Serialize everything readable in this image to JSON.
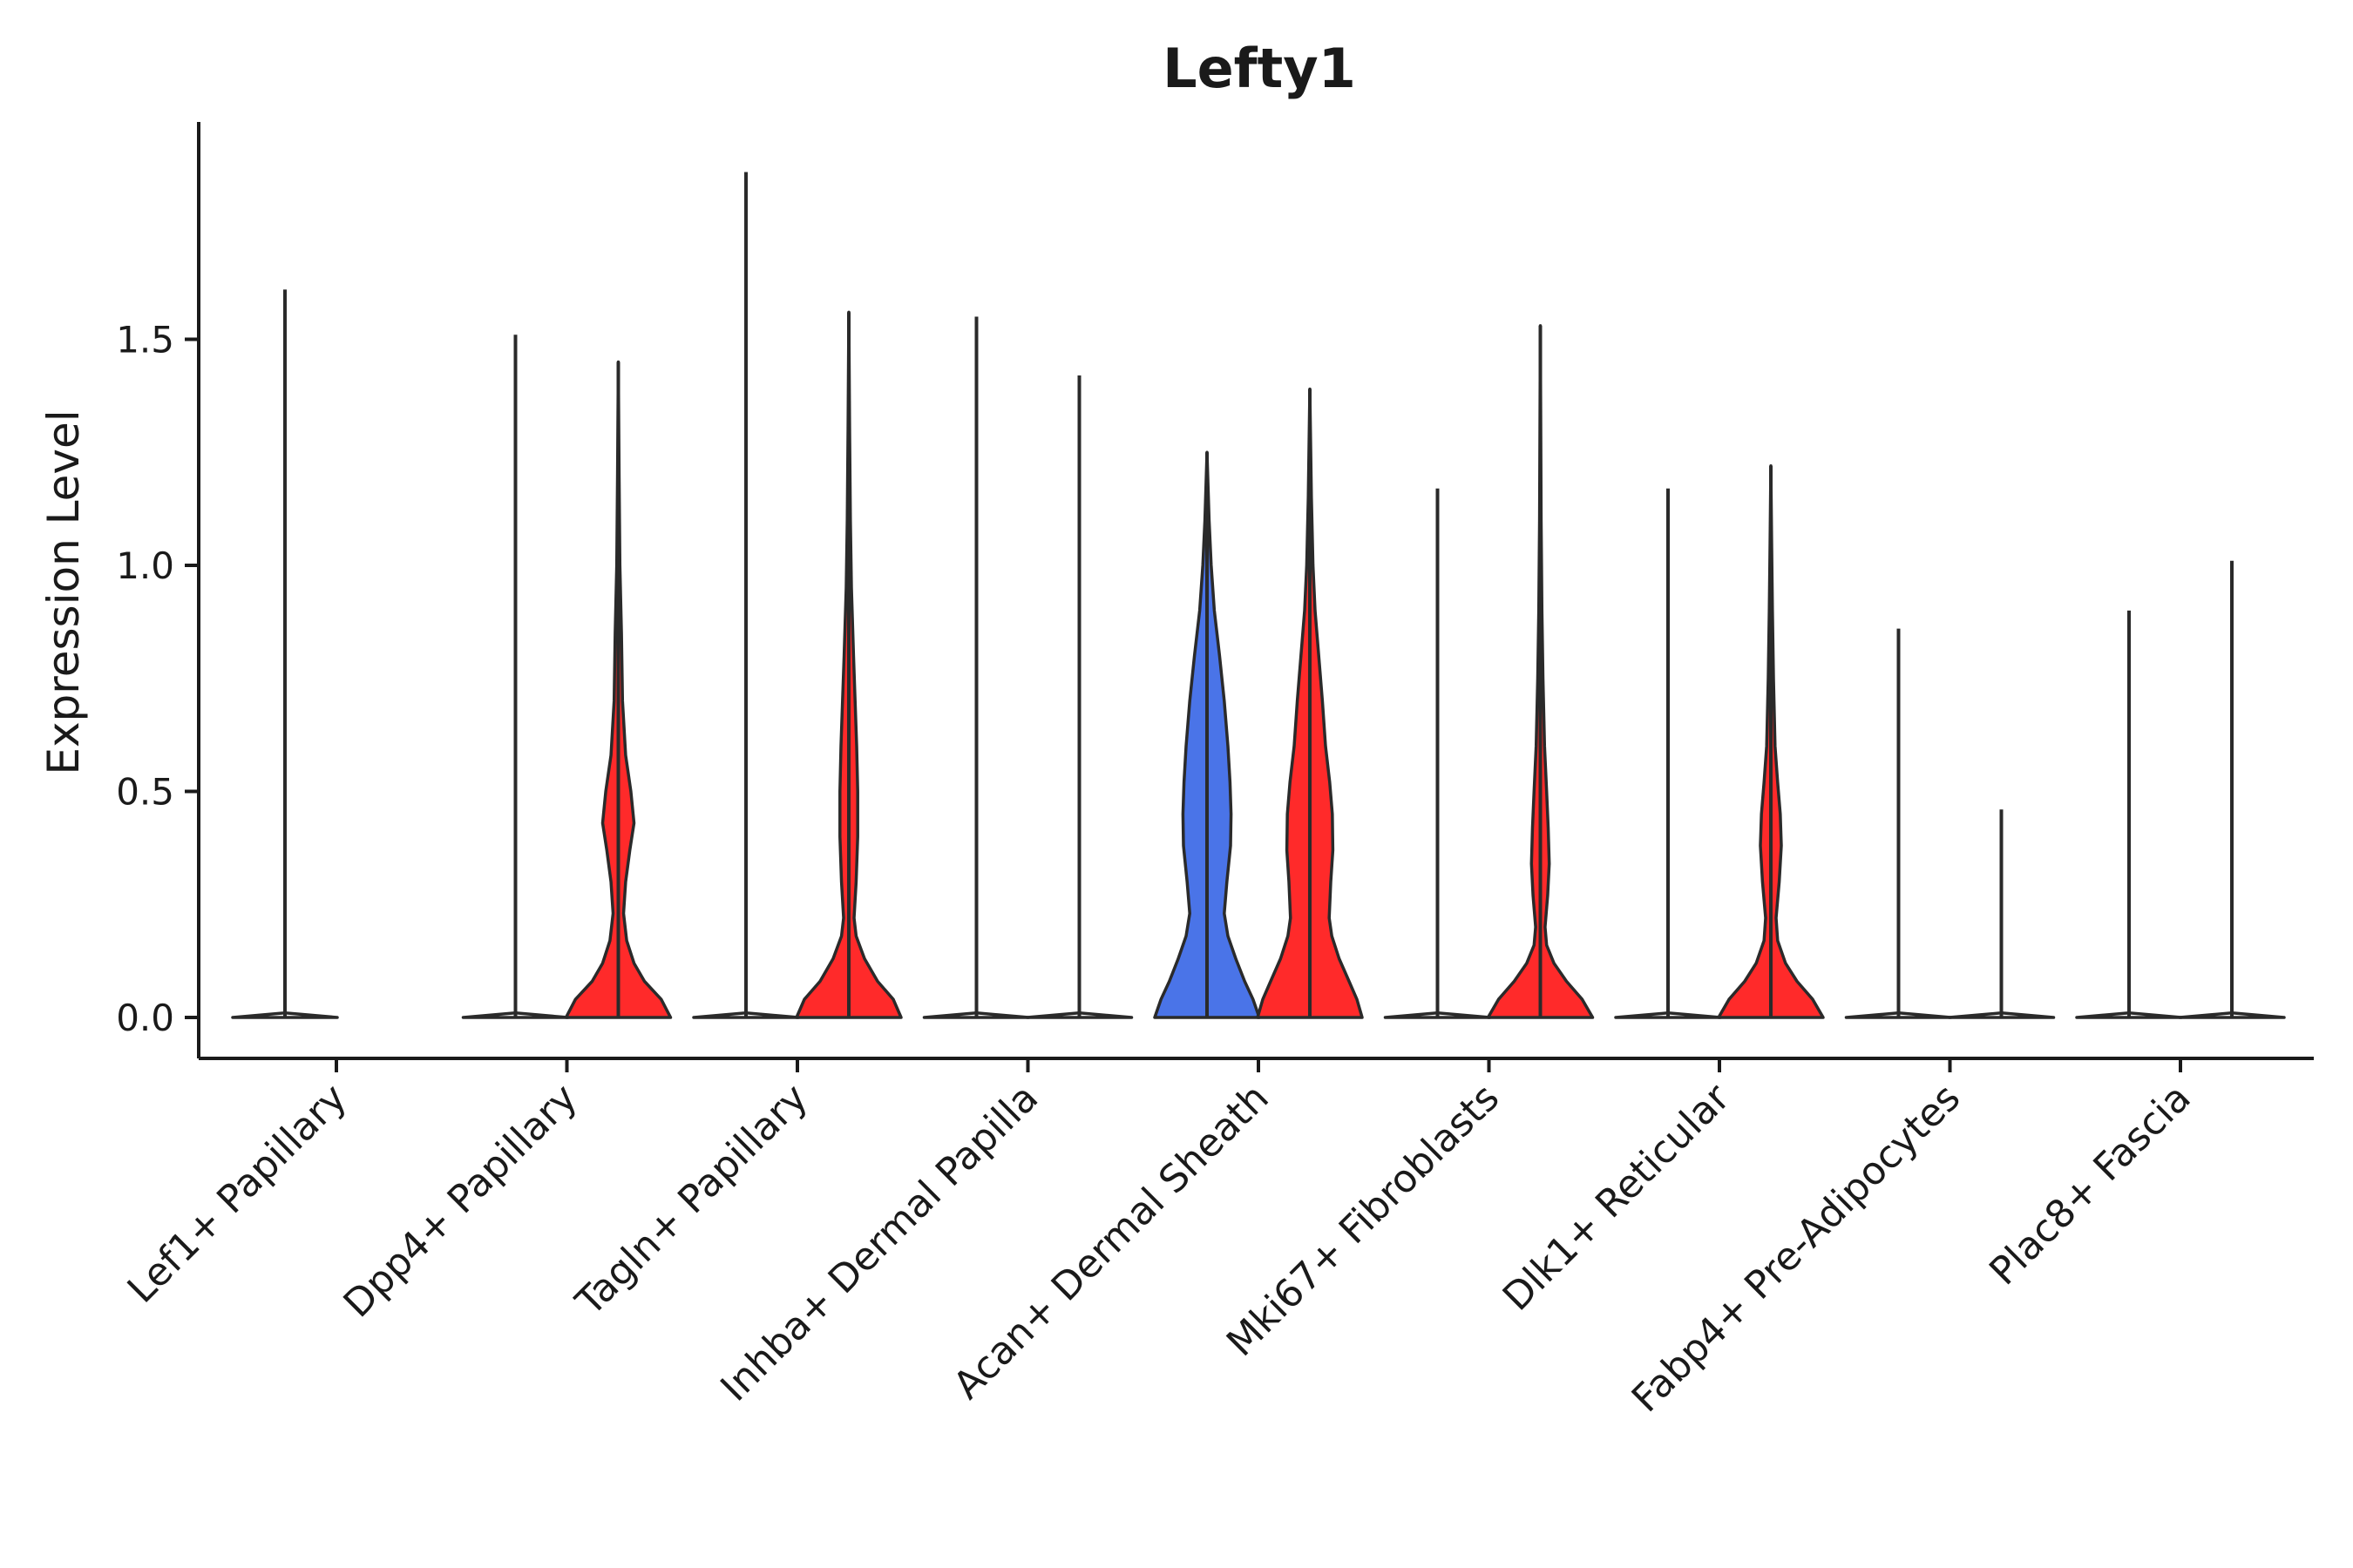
{
  "chart_data": {
    "type": "violin",
    "title": "Lefty1",
    "xlabel": "",
    "ylabel": "Expression Level",
    "ylim": [
      -0.1,
      1.9
    ],
    "yticks": [
      0.0,
      0.5,
      1.0,
      1.5
    ],
    "ytick_labels": [
      "0.0",
      "0.5",
      "1.0",
      "1.5"
    ],
    "grid": false,
    "legend": "none",
    "colors": {
      "group_a": "#ffffff",
      "group_b": "#ff2a2a",
      "highlight": "#4a74e8"
    },
    "categories": [
      "Lef1+ Papillary",
      "Dpp4+ Papillary",
      "Tagln+ Papillary",
      "Inhba+ Dermal Papilla",
      "Acan+ Dermal Sheath",
      "Mki67+ Fibroblasts",
      "Dlk1+ Reticular",
      "Fabp4+ Pre-Adipocytes",
      "Plac8+ Fascia"
    ],
    "violins": [
      {
        "category": "Lef1+ Papillary",
        "side": "left",
        "color": "#ffffff",
        "max": 1.61,
        "profile": [
          [
            0.0,
            1.0
          ],
          [
            0.01,
            0.0
          ]
        ]
      },
      {
        "category": "Dpp4+ Papillary",
        "side": "left",
        "color": "#ffffff",
        "max": 1.51,
        "profile": [
          [
            0.0,
            1.0
          ],
          [
            0.01,
            0.0
          ]
        ]
      },
      {
        "category": "Dpp4+ Papillary",
        "side": "right",
        "color": "#ff2a2a",
        "max": 1.45,
        "profile": [
          [
            0.0,
            1.0
          ],
          [
            0.04,
            0.82
          ],
          [
            0.08,
            0.5
          ],
          [
            0.12,
            0.3
          ],
          [
            0.17,
            0.16
          ],
          [
            0.23,
            0.1
          ],
          [
            0.3,
            0.14
          ],
          [
            0.37,
            0.22
          ],
          [
            0.43,
            0.3
          ],
          [
            0.5,
            0.24
          ],
          [
            0.58,
            0.14
          ],
          [
            0.7,
            0.08
          ],
          [
            0.85,
            0.06
          ],
          [
            1.0,
            0.03
          ],
          [
            1.2,
            0.015
          ],
          [
            1.45,
            0.0
          ]
        ]
      },
      {
        "category": "Tagln+ Papillary",
        "side": "left",
        "color": "#ffffff",
        "max": 1.87,
        "profile": [
          [
            0.0,
            1.0
          ],
          [
            0.01,
            0.0
          ]
        ]
      },
      {
        "category": "Tagln+ Papillary",
        "side": "right",
        "color": "#ff2a2a",
        "max": 1.56,
        "profile": [
          [
            0.0,
            1.0
          ],
          [
            0.04,
            0.85
          ],
          [
            0.08,
            0.55
          ],
          [
            0.13,
            0.3
          ],
          [
            0.18,
            0.14
          ],
          [
            0.22,
            0.1
          ],
          [
            0.3,
            0.14
          ],
          [
            0.4,
            0.17
          ],
          [
            0.5,
            0.17
          ],
          [
            0.6,
            0.15
          ],
          [
            0.7,
            0.12
          ],
          [
            0.8,
            0.09
          ],
          [
            0.95,
            0.05
          ],
          [
            1.1,
            0.03
          ],
          [
            1.3,
            0.015
          ],
          [
            1.56,
            0.0
          ]
        ]
      },
      {
        "category": "Inhba+ Dermal Papilla",
        "side": "left",
        "color": "#ffffff",
        "max": 1.55,
        "profile": [
          [
            0.0,
            1.0
          ],
          [
            0.01,
            0.0
          ]
        ]
      },
      {
        "category": "Inhba+ Dermal Papilla",
        "side": "right",
        "color": "#ffffff",
        "max": 1.42,
        "profile": [
          [
            0.0,
            1.0
          ],
          [
            0.01,
            0.0
          ]
        ]
      },
      {
        "category": "Acan+ Dermal Sheath",
        "side": "left",
        "color": "#4a74e8",
        "max": 1.25,
        "profile": [
          [
            0.0,
            1.0
          ],
          [
            0.04,
            0.88
          ],
          [
            0.08,
            0.72
          ],
          [
            0.13,
            0.55
          ],
          [
            0.18,
            0.4
          ],
          [
            0.23,
            0.33
          ],
          [
            0.3,
            0.38
          ],
          [
            0.38,
            0.45
          ],
          [
            0.45,
            0.46
          ],
          [
            0.52,
            0.44
          ],
          [
            0.6,
            0.4
          ],
          [
            0.7,
            0.33
          ],
          [
            0.8,
            0.24
          ],
          [
            0.9,
            0.14
          ],
          [
            1.0,
            0.08
          ],
          [
            1.1,
            0.04
          ],
          [
            1.25,
            0.0
          ]
        ]
      },
      {
        "category": "Acan+ Dermal Sheath",
        "side": "right",
        "color": "#ff2a2a",
        "max": 1.39,
        "profile": [
          [
            0.0,
            1.0
          ],
          [
            0.04,
            0.9
          ],
          [
            0.08,
            0.75
          ],
          [
            0.13,
            0.56
          ],
          [
            0.18,
            0.42
          ],
          [
            0.22,
            0.37
          ],
          [
            0.3,
            0.4
          ],
          [
            0.37,
            0.44
          ],
          [
            0.45,
            0.43
          ],
          [
            0.52,
            0.38
          ],
          [
            0.6,
            0.3
          ],
          [
            0.7,
            0.24
          ],
          [
            0.8,
            0.17
          ],
          [
            0.9,
            0.1
          ],
          [
            1.0,
            0.06
          ],
          [
            1.15,
            0.03
          ],
          [
            1.39,
            0.0
          ]
        ]
      },
      {
        "category": "Mki67+ Fibroblasts",
        "side": "left",
        "color": "#ffffff",
        "max": 1.17,
        "profile": [
          [
            0.0,
            1.0
          ],
          [
            0.01,
            0.0
          ]
        ]
      },
      {
        "category": "Mki67+ Fibroblasts",
        "side": "right",
        "color": "#ff2a2a",
        "max": 1.53,
        "profile": [
          [
            0.0,
            1.0
          ],
          [
            0.04,
            0.8
          ],
          [
            0.08,
            0.5
          ],
          [
            0.12,
            0.26
          ],
          [
            0.16,
            0.12
          ],
          [
            0.2,
            0.09
          ],
          [
            0.27,
            0.14
          ],
          [
            0.34,
            0.17
          ],
          [
            0.42,
            0.15
          ],
          [
            0.5,
            0.12
          ],
          [
            0.6,
            0.08
          ],
          [
            0.75,
            0.05
          ],
          [
            0.9,
            0.03
          ],
          [
            1.1,
            0.015
          ],
          [
            1.53,
            0.0
          ]
        ]
      },
      {
        "category": "Dlk1+ Reticular",
        "side": "left",
        "color": "#ffffff",
        "max": 1.17,
        "profile": [
          [
            0.0,
            1.0
          ],
          [
            0.01,
            0.0
          ]
        ]
      },
      {
        "category": "Dlk1+ Reticular",
        "side": "right",
        "color": "#ff2a2a",
        "max": 1.22,
        "profile": [
          [
            0.0,
            1.0
          ],
          [
            0.04,
            0.8
          ],
          [
            0.08,
            0.5
          ],
          [
            0.12,
            0.28
          ],
          [
            0.17,
            0.13
          ],
          [
            0.22,
            0.1
          ],
          [
            0.3,
            0.16
          ],
          [
            0.38,
            0.2
          ],
          [
            0.45,
            0.18
          ],
          [
            0.52,
            0.13
          ],
          [
            0.6,
            0.08
          ],
          [
            0.75,
            0.05
          ],
          [
            0.9,
            0.03
          ],
          [
            1.05,
            0.015
          ],
          [
            1.22,
            0.0
          ]
        ]
      },
      {
        "category": "Fabp4+ Pre-Adipocytes",
        "side": "left",
        "color": "#ffffff",
        "max": 0.86,
        "profile": [
          [
            0.0,
            1.0
          ],
          [
            0.01,
            0.0
          ]
        ]
      },
      {
        "category": "Fabp4+ Pre-Adipocytes",
        "side": "right",
        "color": "#ffffff",
        "max": 0.46,
        "profile": [
          [
            0.0,
            1.0
          ],
          [
            0.01,
            0.0
          ]
        ]
      },
      {
        "category": "Plac8+ Fascia",
        "side": "left",
        "color": "#ffffff",
        "max": 0.9,
        "profile": [
          [
            0.0,
            1.0
          ],
          [
            0.01,
            0.0
          ]
        ]
      },
      {
        "category": "Plac8+ Fascia",
        "side": "right",
        "color": "#ffffff",
        "max": 1.01,
        "profile": [
          [
            0.0,
            1.0
          ],
          [
            0.01,
            0.0
          ]
        ]
      }
    ]
  }
}
